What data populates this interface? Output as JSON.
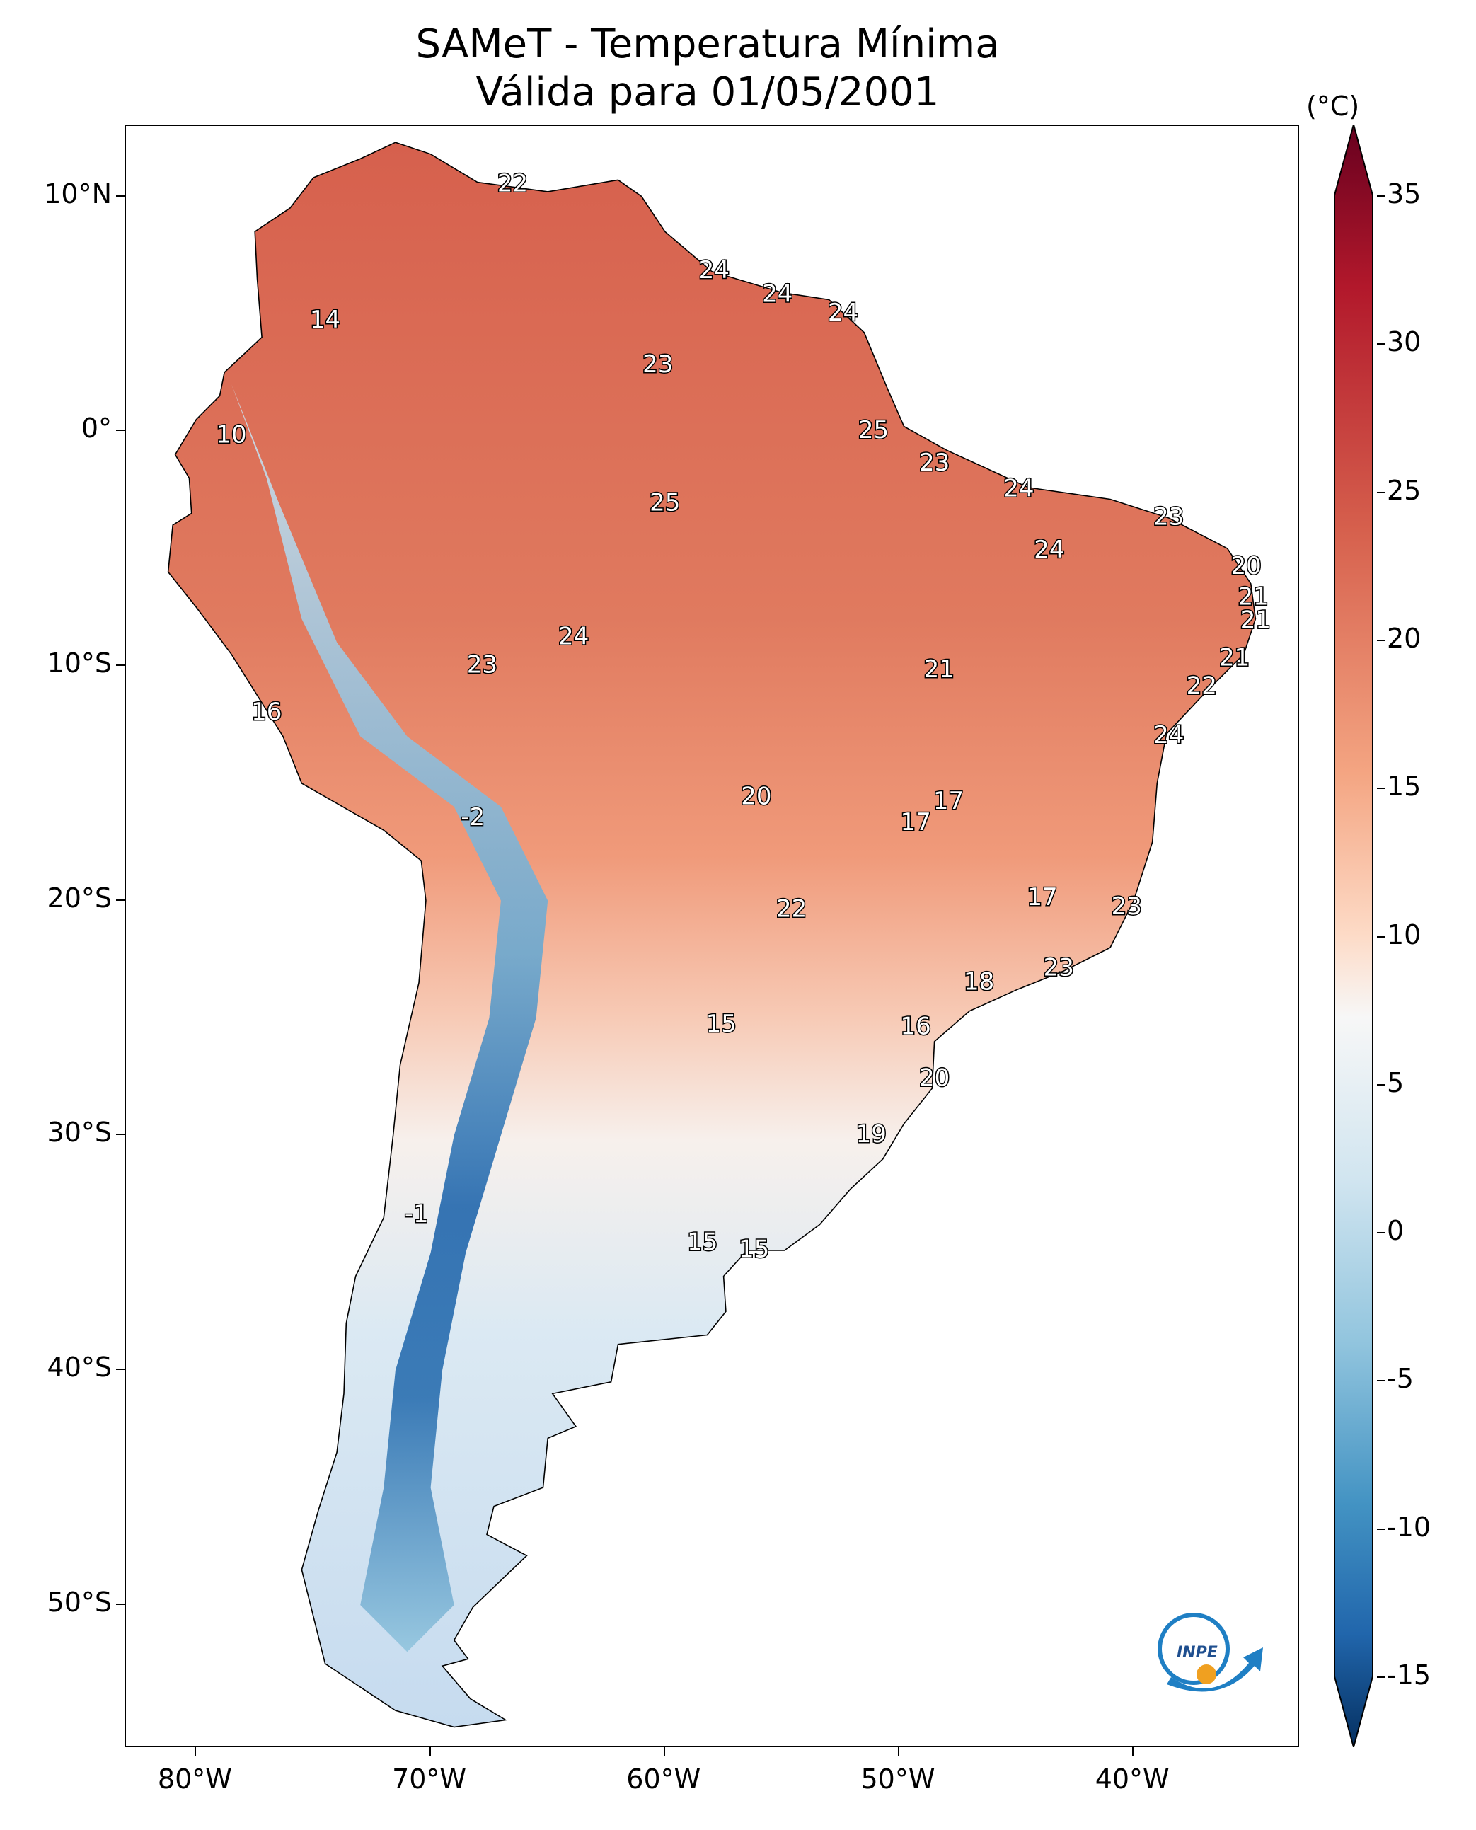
{
  "title": {
    "line1": "SAMeT - Temperatura Mínima",
    "line2": "Válida para 01/05/2001"
  },
  "map": {
    "lat_labels": [
      "10°N",
      "0°",
      "10°S",
      "20°S",
      "30°S",
      "40°S",
      "50°S"
    ],
    "lat_values": [
      10,
      0,
      -10,
      -20,
      -30,
      -40,
      -50
    ],
    "lon_labels": [
      "80°W",
      "70°W",
      "60°W",
      "50°W",
      "40°W"
    ],
    "lon_values": [
      -80,
      -70,
      -60,
      -50,
      -40
    ],
    "extent": {
      "lon_min": -83,
      "lon_max": -33,
      "lat_min": -56,
      "lat_max": 13
    },
    "station_values": [
      {
        "value": "22",
        "lon": -66.5,
        "lat": 10.5
      },
      {
        "value": "14",
        "lon": -74.5,
        "lat": 4.7
      },
      {
        "value": "24",
        "lon": -57.9,
        "lat": 6.8
      },
      {
        "value": "24",
        "lon": -55.2,
        "lat": 5.8
      },
      {
        "value": "24",
        "lon": -52.4,
        "lat": 5.0
      },
      {
        "value": "23",
        "lon": -60.3,
        "lat": 2.8
      },
      {
        "value": "10",
        "lon": -78.5,
        "lat": -0.2
      },
      {
        "value": "25",
        "lon": -51.1,
        "lat": 0.0
      },
      {
        "value": "23",
        "lon": -48.5,
        "lat": -1.4
      },
      {
        "value": "25",
        "lon": -60.0,
        "lat": -3.1
      },
      {
        "value": "24",
        "lon": -44.9,
        "lat": -2.5
      },
      {
        "value": "23",
        "lon": -38.5,
        "lat": -3.7
      },
      {
        "value": "24",
        "lon": -43.6,
        "lat": -5.1
      },
      {
        "value": "20",
        "lon": -35.2,
        "lat": -5.8
      },
      {
        "value": "21",
        "lon": -34.9,
        "lat": -7.1
      },
      {
        "value": "21",
        "lon": -34.8,
        "lat": -8.1
      },
      {
        "value": "24",
        "lon": -63.9,
        "lat": -8.8
      },
      {
        "value": "23",
        "lon": -67.8,
        "lat": -10.0
      },
      {
        "value": "21",
        "lon": -48.3,
        "lat": -10.2
      },
      {
        "value": "21",
        "lon": -35.7,
        "lat": -9.7
      },
      {
        "value": "22",
        "lon": -37.1,
        "lat": -10.9
      },
      {
        "value": "16",
        "lon": -77.0,
        "lat": -12.0
      },
      {
        "value": "24",
        "lon": -38.5,
        "lat": -13.0
      },
      {
        "value": "20",
        "lon": -56.1,
        "lat": -15.6
      },
      {
        "value": "17",
        "lon": -47.9,
        "lat": -15.8
      },
      {
        "value": "17",
        "lon": -49.3,
        "lat": -16.7
      },
      {
        "value": "-2",
        "lon": -68.2,
        "lat": -16.5
      },
      {
        "value": "17",
        "lon": -43.9,
        "lat": -19.9
      },
      {
        "value": "23",
        "lon": -40.3,
        "lat": -20.3
      },
      {
        "value": "22",
        "lon": -54.6,
        "lat": -20.4
      },
      {
        "value": "23",
        "lon": -43.2,
        "lat": -22.9
      },
      {
        "value": "18",
        "lon": -46.6,
        "lat": -23.5
      },
      {
        "value": "15",
        "lon": -57.6,
        "lat": -25.3
      },
      {
        "value": "16",
        "lon": -49.3,
        "lat": -25.4
      },
      {
        "value": "20",
        "lon": -48.5,
        "lat": -27.6
      },
      {
        "value": "19",
        "lon": -51.2,
        "lat": -30.0
      },
      {
        "value": "-1",
        "lon": -70.6,
        "lat": -33.4
      },
      {
        "value": "15",
        "lon": -58.4,
        "lat": -34.6
      },
      {
        "value": "15",
        "lon": -56.2,
        "lat": -34.9
      }
    ]
  },
  "colorbar": {
    "unit": "(°C)",
    "labels": [
      "35",
      "30",
      "25",
      "20",
      "15",
      "10",
      "5",
      "0",
      "-5",
      "-10",
      "-15"
    ],
    "values": [
      35,
      30,
      25,
      20,
      15,
      10,
      5,
      0,
      -5,
      -10,
      -15
    ],
    "range": [
      -15,
      35
    ],
    "colors": {
      "min": "#053061",
      "cold": "#2166ac",
      "cool": "#92c5de",
      "neutral": "#f7f7f7",
      "warm": "#f4a582",
      "hot": "#d6604d",
      "max": "#67001f"
    }
  },
  "logo": {
    "name": "INPE"
  }
}
